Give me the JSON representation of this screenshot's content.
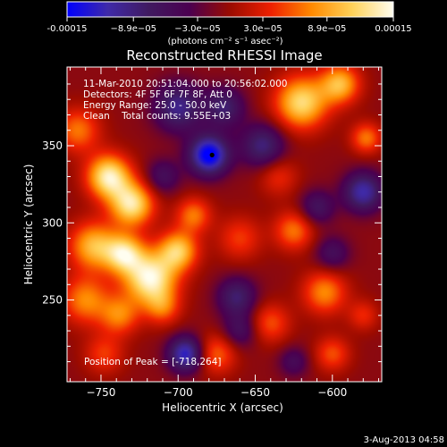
{
  "chart_data": {
    "type": "heatmap",
    "title": "Reconstructed RHESSI Image",
    "xlabel": "Heliocentric X (arcsec)",
    "ylabel": "Heliocentric Y (arcsec)",
    "xlim": [
      -772,
      -568
    ],
    "ylim": [
      197,
      401
    ],
    "x_ticks": [
      -750,
      -700,
      -650,
      -600
    ],
    "x_tick_labels": [
      "−750",
      "−700",
      "−650",
      "−600"
    ],
    "y_ticks": [
      250,
      300,
      350
    ],
    "y_tick_labels": [
      "250",
      "300",
      "350"
    ],
    "colorbar": {
      "min": -0.00015,
      "max": 0.00015,
      "tick_values": [
        -0.00015,
        -8.9e-05,
        -3e-05,
        3e-05,
        8.9e-05,
        0.00015
      ],
      "tick_labels": [
        "-0.00015",
        "−8.9e−05",
        "−3.0e−05",
        "3.0e−05",
        "8.9e−05",
        "0.00015"
      ],
      "units_label": "(photons cm⁻² s⁻¹ asec⁻²)",
      "stops": [
        "#0000ff",
        "#3f2aa8",
        "#401a60",
        "#4b0050",
        "#9b0b00",
        "#ee2000",
        "#ff8a00",
        "#ffd25a",
        "#fffef0"
      ]
    },
    "annotations": [
      "11-Mar-2010 20:51:04.000 to 20:56:02.000",
      "Detectors: 4F 5F 6F 7F 8F, Att 0",
      "Energy Range: 25.0 - 50.0 keV",
      "Clean    Total counts: 9.55E+03"
    ],
    "peak_label": "Position of Peak = [-718,264]",
    "peak": {
      "x": -718,
      "y": 264
    },
    "marker": {
      "x": -678,
      "y": 344
    },
    "blobs": [
      {
        "x": -718,
        "y": 264,
        "r": 12,
        "amp": 1.0
      },
      {
        "x": -745,
        "y": 330,
        "r": 10,
        "amp": 0.95
      },
      {
        "x": -730,
        "y": 312,
        "r": 10,
        "amp": 0.9
      },
      {
        "x": -755,
        "y": 285,
        "r": 11,
        "amp": 0.7
      },
      {
        "x": -735,
        "y": 280,
        "r": 9,
        "amp": 0.8
      },
      {
        "x": -700,
        "y": 282,
        "r": 9,
        "amp": 0.75
      },
      {
        "x": -690,
        "y": 305,
        "r": 8,
        "amp": 0.5
      },
      {
        "x": -760,
        "y": 250,
        "r": 11,
        "amp": 0.55
      },
      {
        "x": -738,
        "y": 240,
        "r": 9,
        "amp": 0.5
      },
      {
        "x": -710,
        "y": 245,
        "r": 8,
        "amp": 0.4
      },
      {
        "x": -765,
        "y": 360,
        "r": 10,
        "amp": 0.5
      },
      {
        "x": -748,
        "y": 215,
        "r": 9,
        "amp": 0.35
      },
      {
        "x": -620,
        "y": 378,
        "r": 12,
        "amp": 0.85
      },
      {
        "x": -595,
        "y": 390,
        "r": 9,
        "amp": 0.7
      },
      {
        "x": -578,
        "y": 355,
        "r": 7,
        "amp": 0.5
      },
      {
        "x": -660,
        "y": 290,
        "r": 10,
        "amp": 0.35
      },
      {
        "x": -625,
        "y": 295,
        "r": 9,
        "amp": 0.5
      },
      {
        "x": -605,
        "y": 255,
        "r": 10,
        "amp": 0.55
      },
      {
        "x": -640,
        "y": 235,
        "r": 9,
        "amp": 0.4
      },
      {
        "x": -675,
        "y": 215,
        "r": 9,
        "amp": 0.45
      },
      {
        "x": -600,
        "y": 215,
        "r": 8,
        "amp": 0.4
      },
      {
        "x": -580,
        "y": 240,
        "r": 7,
        "amp": 0.3
      },
      {
        "x": -635,
        "y": 330,
        "r": 9,
        "amp": 0.3
      },
      {
        "x": -680,
        "y": 344,
        "r": 9,
        "amp": -1.0
      },
      {
        "x": -700,
        "y": 375,
        "r": 11,
        "amp": -0.6
      },
      {
        "x": -670,
        "y": 375,
        "r": 9,
        "amp": -0.5
      },
      {
        "x": -645,
        "y": 350,
        "r": 10,
        "amp": -0.55
      },
      {
        "x": -580,
        "y": 320,
        "r": 9,
        "amp": -0.7
      },
      {
        "x": -610,
        "y": 310,
        "r": 8,
        "amp": -0.4
      },
      {
        "x": -662,
        "y": 252,
        "r": 9,
        "amp": -0.5
      },
      {
        "x": -695,
        "y": 215,
        "r": 8,
        "amp": -0.8
      },
      {
        "x": -660,
        "y": 230,
        "r": 8,
        "amp": -0.35
      },
      {
        "x": -600,
        "y": 280,
        "r": 8,
        "amp": -0.35
      },
      {
        "x": -710,
        "y": 330,
        "r": 8,
        "amp": -0.35
      },
      {
        "x": -625,
        "y": 210,
        "r": 7,
        "amp": -0.3
      }
    ],
    "background_level": -0.05,
    "grid": false
  },
  "footer": {
    "date": "3-Aug-2013 04:58"
  }
}
